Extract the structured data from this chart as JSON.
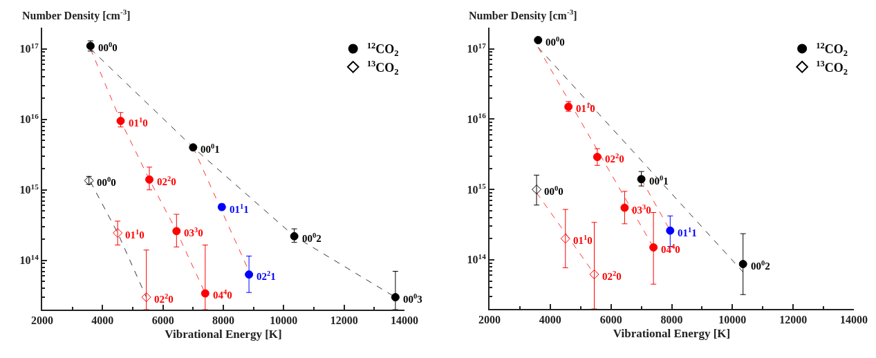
{
  "chart_data": [
    {
      "type": "scatter",
      "xlabel": "Vibrational Energy [K]",
      "ylabel": "Number Density [cm$^{-3}$]",
      "log": "y",
      "legend": "top right",
      "xlim": [
        2000,
        14000
      ],
      "ylim": [
        20000000000000.0,
        2e+17
      ],
      "xticks": [
        2000,
        {
          "value": 3000,
          "label": null
        },
        4000,
        {
          "value": 5000,
          "label": null
        },
        6000,
        {
          "value": 7000,
          "label": null
        },
        8000,
        {
          "value": 9000,
          "label": null
        },
        10000,
        {
          "value": 11000,
          "label": null
        },
        12000,
        {
          "value": 13000,
          "label": null
        },
        14000
      ],
      "yticks": [
        {
          "value": 100000000000000.0,
          "label": "10$^{14}$"
        },
        {
          "value": 1000000000000000.0,
          "label": "10$^{15}$"
        },
        {
          "value": 1e+16,
          "label": "10$^{16}$"
        },
        {
          "value": 1e+17,
          "label": "10$^{17}$"
        },
        {
          "value": 30000000000000.0,
          "label": null
        },
        {
          "value": 40000000000000.0,
          "label": null
        },
        {
          "value": 50000000000000.0,
          "label": null
        },
        {
          "value": 60000000000000.0,
          "label": null
        },
        {
          "value": 70000000000000.0,
          "label": null
        },
        {
          "value": 80000000000000.0,
          "label": null
        },
        {
          "value": 90000000000000.0,
          "label": null
        },
        {
          "value": 200000000000000.0,
          "label": null
        },
        {
          "value": 300000000000000.0,
          "label": null
        },
        {
          "value": 400000000000000.0,
          "label": null
        },
        {
          "value": 500000000000000.0,
          "label": null
        },
        {
          "value": 600000000000000.0,
          "label": null
        },
        {
          "value": 700000000000000.0,
          "label": null
        },
        {
          "value": 800000000000000.0,
          "label": null
        },
        {
          "value": 900000000000000.0,
          "label": null
        },
        {
          "value": 2000000000000000.0,
          "label": null
        },
        {
          "value": 3000000000000000.0,
          "label": null
        },
        {
          "value": 4000000000000000.0,
          "label": null
        },
        {
          "value": 5000000000000000.0,
          "label": null
        },
        {
          "value": 6000000000000000.0,
          "label": null
        },
        {
          "value": 7000000000000000.0,
          "label": null
        },
        {
          "value": 8000000000000000.0,
          "label": null
        },
        {
          "value": 9000000000000000.0,
          "label": null
        },
        {
          "value": 2e+16,
          "label": null
        },
        {
          "value": 3e+16,
          "label": null
        },
        {
          "value": 4e+16,
          "label": null
        },
        {
          "value": 5e+16,
          "label": null
        },
        {
          "value": 6e+16,
          "label": null
        },
        {
          "value": 7e+16,
          "label": null
        },
        {
          "value": 8e+16,
          "label": null
        },
        {
          "value": 9e+16,
          "label": null
        }
      ],
      "series": [
        {
          "type": "line",
          "line_style": "dashed",
          "marker": "none",
          "color": "#333333",
          "x": [
            3600,
            7000,
            10350,
            13700
          ],
          "values": [
            1e+17,
            4000000000000000.0,
            220000000000000.0,
            30000000000000.0
          ]
        },
        {
          "type": "line",
          "line_style": "dashed",
          "marker": "none",
          "color": "#ff3333",
          "x": [
            3600,
            4600,
            5550,
            6450,
            7400
          ],
          "values": [
            1e+17,
            9500000000000000.0,
            1400000000000000.0,
            260000000000000.0,
            34000000000000.0
          ]
        },
        {
          "type": "line",
          "line_style": "dashed",
          "marker": "none",
          "color": "#ff3333",
          "x": [
            7000,
            8850
          ],
          "values": [
            4000000000000000.0,
            70000000000000.0
          ]
        },
        {
          "type": "line",
          "line_style": "dashed",
          "marker": "none",
          "color": "#333333",
          "x": [
            3600,
            4500,
            5450
          ],
          "values": [
            1300000000000000.0,
            245000000000000.0,
            30000000000000.0
          ]
        },
        {
          "name": "$^{12}$CO$_{2}$",
          "marker": "circle",
          "color": "#000000",
          "x": [
            3600,
            7000,
            10350,
            13700
          ],
          "values": [
            1.1e+17,
            4000000000000000.0,
            220000000000000.0,
            30000000000000.0
          ],
          "errors": [
            [
              9.3e+16,
              1.3e+17
            ],
            null,
            [
              180000000000000.0,
              280000000000000.0
            ],
            [
              20000000000000.0,
              70000000000000.0
            ]
          ],
          "value_labels": [
            "00$^{0}$0",
            "00$^{0}$1",
            "00$^{0}$2",
            "00$^{0}$3"
          ]
        },
        {
          "marker": "circle",
          "color": "#ff0000",
          "x": [
            4600,
            5550,
            6450,
            7400
          ],
          "values": [
            9500000000000000.0,
            1400000000000000.0,
            260000000000000.0,
            34000000000000.0
          ],
          "errors": [
            [
              7800000000000000.0,
              1.25e+16
            ],
            [
              1000000000000000.0,
              2100000000000000.0
            ],
            [
              155000000000000.0,
              450000000000000.0
            ],
            [
              20000000000000.0,
              165000000000000.0
            ]
          ],
          "value_labels": [
            "01$^{1}$0",
            "02$^{2}$0",
            "03$^{3}$0",
            "04$^{4}$0"
          ]
        },
        {
          "marker": "circle",
          "color": "#0000ff",
          "x": [
            7950,
            8850
          ],
          "values": [
            570000000000000.0,
            63000000000000.0
          ],
          "errors": [
            [
              520000000000000.0,
              630000000000000.0
            ],
            [
              35000000000000.0,
              115000000000000.0
            ]
          ],
          "value_labels": [
            "01$^{1}$1",
            "02$^{2}$1"
          ]
        },
        {
          "name": "$^{13}$CO$_{2}$",
          "marker": "diamond",
          "color": "#000000",
          "x": [
            3550
          ],
          "values": [
            1350000000000000.0
          ],
          "errors": [
            [
              1200000000000000.0,
              1550000000000000.0
            ]
          ],
          "value_labels": [
            "00$^{0}$0"
          ]
        },
        {
          "marker": "diamond",
          "color": "#ff0000",
          "x": [
            4500,
            5450
          ],
          "values": [
            245000000000000.0,
            30000000000000.0
          ],
          "errors": [
            [
              165000000000000.0,
              360000000000000.0
            ],
            [
              20000000000000.0,
              140000000000000.0
            ]
          ],
          "value_labels": [
            "01$^{1}$0",
            "02$^{2}$0"
          ]
        }
      ]
    },
    {
      "type": "scatter",
      "xlabel": "Vibrational Energy [K]",
      "ylabel": "Number Density [cm$^{-3}$]",
      "log": "y",
      "legend": "top right",
      "xlim": [
        2000,
        14000
      ],
      "ylim": [
        20000000000000.0,
        2e+17
      ],
      "xticks": [
        2000,
        {
          "value": 3000,
          "label": null
        },
        4000,
        {
          "value": 5000,
          "label": null
        },
        6000,
        {
          "value": 7000,
          "label": null
        },
        8000,
        {
          "value": 9000,
          "label": null
        },
        10000,
        {
          "value": 11000,
          "label": null
        },
        12000,
        {
          "value": 13000,
          "label": null
        },
        14000
      ],
      "yticks": [
        {
          "value": 100000000000000.0,
          "label": "10$^{14}$"
        },
        {
          "value": 1000000000000000.0,
          "label": "10$^{15}$"
        },
        {
          "value": 1e+16,
          "label": "10$^{16}$"
        },
        {
          "value": 1e+17,
          "label": "10$^{17}$"
        },
        {
          "value": 30000000000000.0,
          "label": null
        },
        {
          "value": 40000000000000.0,
          "label": null
        },
        {
          "value": 50000000000000.0,
          "label": null
        },
        {
          "value": 60000000000000.0,
          "label": null
        },
        {
          "value": 70000000000000.0,
          "label": null
        },
        {
          "value": 80000000000000.0,
          "label": null
        },
        {
          "value": 90000000000000.0,
          "label": null
        },
        {
          "value": 200000000000000.0,
          "label": null
        },
        {
          "value": 300000000000000.0,
          "label": null
        },
        {
          "value": 400000000000000.0,
          "label": null
        },
        {
          "value": 500000000000000.0,
          "label": null
        },
        {
          "value": 600000000000000.0,
          "label": null
        },
        {
          "value": 700000000000000.0,
          "label": null
        },
        {
          "value": 800000000000000.0,
          "label": null
        },
        {
          "value": 900000000000000.0,
          "label": null
        },
        {
          "value": 2000000000000000.0,
          "label": null
        },
        {
          "value": 3000000000000000.0,
          "label": null
        },
        {
          "value": 4000000000000000.0,
          "label": null
        },
        {
          "value": 5000000000000000.0,
          "label": null
        },
        {
          "value": 6000000000000000.0,
          "label": null
        },
        {
          "value": 7000000000000000.0,
          "label": null
        },
        {
          "value": 8000000000000000.0,
          "label": null
        },
        {
          "value": 9000000000000000.0,
          "label": null
        },
        {
          "value": 2e+16,
          "label": null
        },
        {
          "value": 3e+16,
          "label": null
        },
        {
          "value": 4e+16,
          "label": null
        },
        {
          "value": 5e+16,
          "label": null
        },
        {
          "value": 6e+16,
          "label": null
        },
        {
          "value": 7e+16,
          "label": null
        },
        {
          "value": 8e+16,
          "label": null
        },
        {
          "value": 9e+16,
          "label": null
        }
      ],
      "series": [
        {
          "type": "line",
          "line_style": "dashed",
          "marker": "none",
          "color": "#333333",
          "x": [
            3600,
            10350
          ],
          "values": [
            1.05e+17,
            67000000000000.0
          ]
        },
        {
          "type": "line",
          "line_style": "dashed",
          "marker": "none",
          "color": "#ff3333",
          "x": [
            3600,
            7400
          ],
          "values": [
            1.05e+17,
            150000000000000.0
          ]
        },
        {
          "type": "line",
          "line_style": "dashed",
          "marker": "none",
          "color": "#ff3333",
          "x": [
            7000,
            7950
          ],
          "values": [
            1400000000000000.0,
            260000000000000.0
          ]
        },
        {
          "type": "line",
          "line_style": "dashed",
          "marker": "none",
          "color": "#ff3333",
          "x": [
            3550,
            5450
          ],
          "values": [
            900000000000000.0,
            63000000000000.0
          ]
        },
        {
          "name": "$^{12}$CO$_{2}$",
          "marker": "circle",
          "color": "#000000",
          "x": [
            3600,
            7000,
            10350
          ],
          "values": [
            1.33e+17,
            1400000000000000.0,
            87000000000000.0
          ],
          "errors": [
            null,
            [
              1120000000000000.0,
              1800000000000000.0
            ],
            [
              32000000000000.0,
              235000000000000.0
            ]
          ],
          "value_labels": [
            "00$^{0}$0",
            "00$^{0}$1",
            "00$^{0}$2"
          ]
        },
        {
          "marker": "circle",
          "color": "#ff0000",
          "x": [
            4600,
            5550,
            6450,
            7400
          ],
          "values": [
            1.5e+16,
            2900000000000000.0,
            550000000000000.0,
            150000000000000.0
          ],
          "errors": [
            [
              1.29e+16,
              1.78e+16
            ],
            [
              2200000000000000.0,
              3800000000000000.0
            ],
            [
              325000000000000.0,
              940000000000000.0
            ],
            [
              45000000000000.0,
              470000000000000.0
            ]
          ],
          "value_labels": [
            "01$^{1}$0",
            "02$^{2}$0",
            "03$^{3}$0",
            "04$^{4}$0"
          ]
        },
        {
          "marker": "circle",
          "color": "#0000ff",
          "x": [
            7950
          ],
          "values": [
            260000000000000.0
          ],
          "errors": [
            [
              155000000000000.0,
              420000000000000.0
            ]
          ],
          "value_labels": [
            "01$^{1}$1"
          ]
        },
        {
          "name": "$^{13}$CO$_{2}$",
          "marker": "diamond",
          "color": "#000000",
          "x": [
            3550
          ],
          "values": [
            1000000000000000.0
          ],
          "errors": [
            [
              600000000000000.0,
              1600000000000000.0
            ]
          ],
          "value_labels": [
            "00$^{0}$0"
          ]
        },
        {
          "marker": "diamond",
          "color": "#ff0000",
          "x": [
            4500,
            5450
          ],
          "values": [
            200000000000000.0,
            62000000000000.0
          ],
          "errors": [
            [
              77000000000000.0,
              520000000000000.0
            ],
            [
              20000000000000.0,
              340000000000000.0
            ]
          ],
          "value_labels": [
            "01$^{1}$0",
            "02$^{2}$0"
          ]
        }
      ]
    }
  ]
}
